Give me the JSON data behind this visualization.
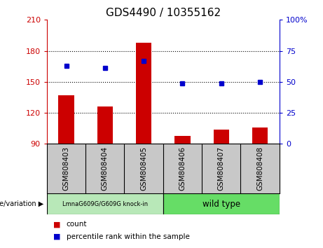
{
  "title": "GDS4490 / 10355162",
  "samples": [
    "GSM808403",
    "GSM808404",
    "GSM808405",
    "GSM808406",
    "GSM808407",
    "GSM808408"
  ],
  "counts": [
    137,
    126,
    188,
    98,
    104,
    106
  ],
  "percentiles": [
    63,
    61,
    67,
    49,
    49,
    50
  ],
  "ylim_left": [
    90,
    210
  ],
  "ylim_right": [
    0,
    100
  ],
  "yticks_left": [
    90,
    120,
    150,
    180,
    210
  ],
  "yticks_right": [
    0,
    25,
    50,
    75,
    100
  ],
  "bar_color": "#cc0000",
  "dot_color": "#0000cc",
  "sample_bg_color": "#c8c8c8",
  "group1_label": "LmnaG609G/G609G knock-in",
  "group2_label": "wild type",
  "group1_color": "#b8e8b8",
  "group2_color": "#66dd66",
  "legend_count_label": "count",
  "legend_pct_label": "percentile rank within the sample",
  "genotype_label": "genotype/variation"
}
